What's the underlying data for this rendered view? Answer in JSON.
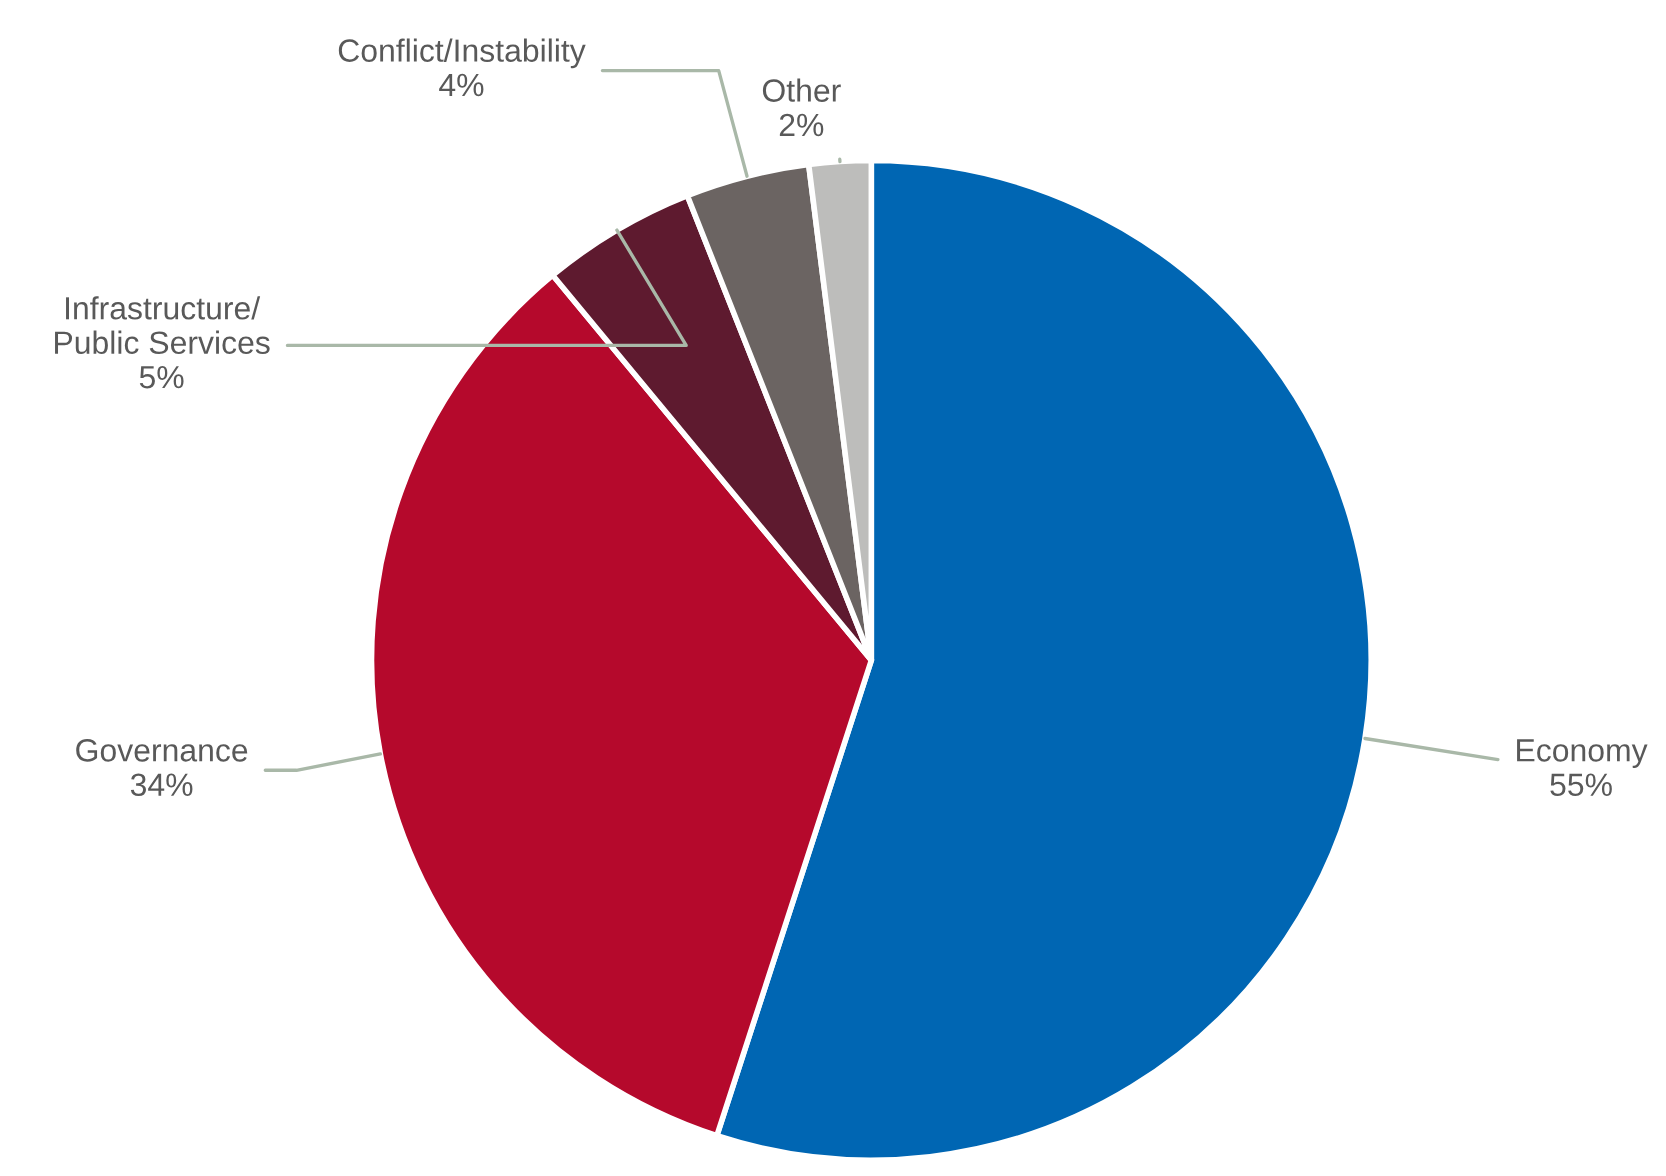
{
  "chart_data": {
    "type": "pie",
    "categories": [
      "Economy",
      "Governance",
      "Infrastructure/ Public Services",
      "Conflict/Instability",
      "Other"
    ],
    "values": [
      55,
      34,
      5,
      4,
      2
    ],
    "colors": [
      "#0066b3",
      "#b5092c",
      "#5e1a2f",
      "#6b6462",
      "#bdbdbb"
    ],
    "value_labels": [
      "55%",
      "34%",
      "5%",
      "4%",
      "2%"
    ],
    "legend": false
  }
}
